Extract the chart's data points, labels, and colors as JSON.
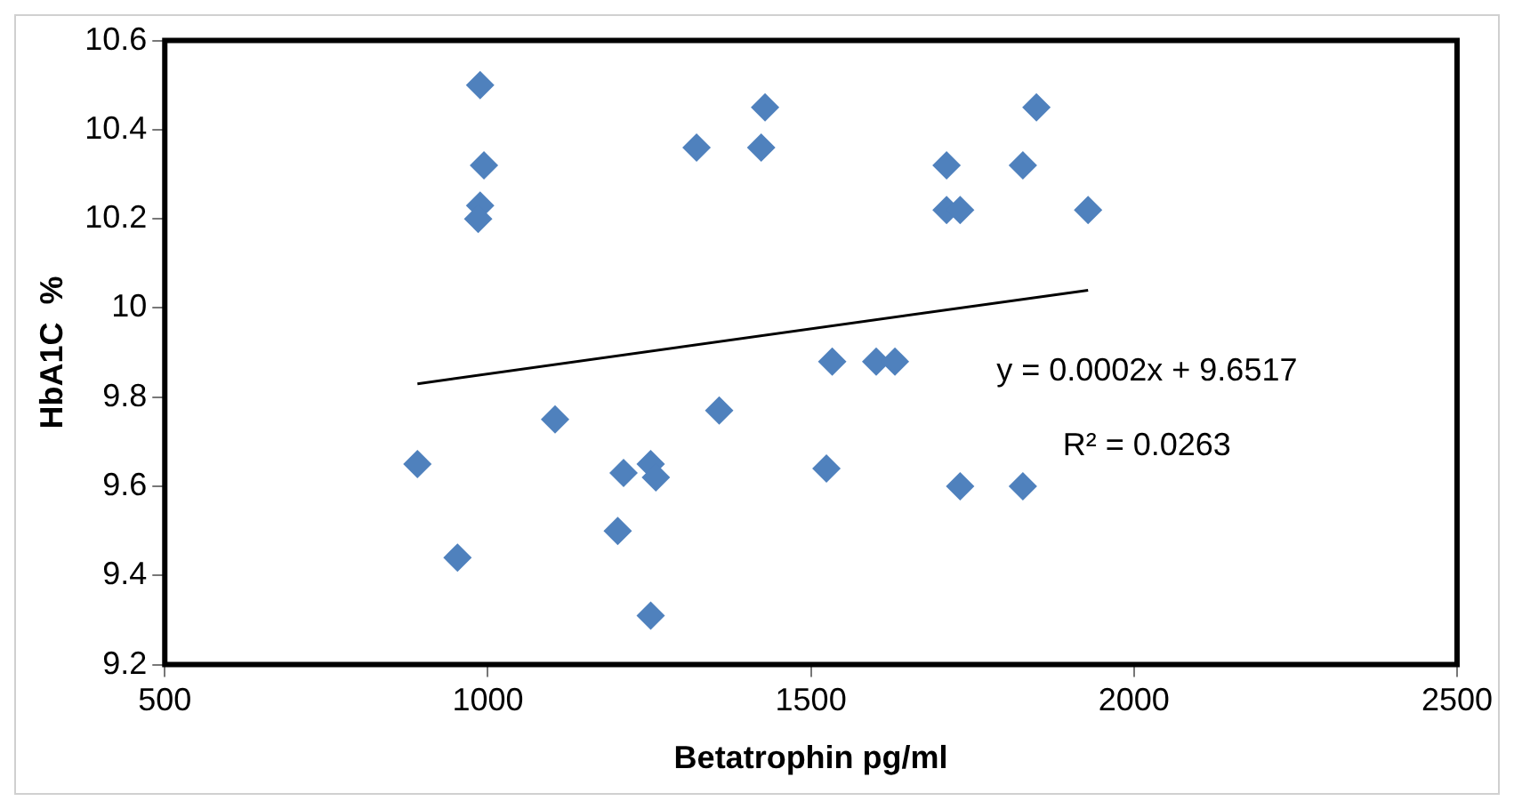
{
  "chart_data": {
    "type": "scatter",
    "xlabel": "Betatrophin pg/ml",
    "ylabel": "HbA1C  %",
    "xlim": [
      500,
      2500
    ],
    "xticks": [
      500,
      1000,
      1500,
      2000,
      2500
    ],
    "ylim": [
      9.2,
      10.6
    ],
    "yticks": [
      {
        "value": 9.2,
        "label": "9.2"
      },
      {
        "value": 9.4,
        "label": "9.4"
      },
      {
        "value": 9.6,
        "label": "9.6"
      },
      {
        "value": 9.8,
        "label": "9.8"
      },
      {
        "value": 10,
        "label": "10"
      },
      {
        "value": 10.2,
        "label": "10.2"
      },
      {
        "value": 10.4,
        "label": "10.4"
      },
      {
        "value": 10.6,
        "label": "10.6"
      }
    ],
    "marker": "diamond",
    "legend": false,
    "annotations": [
      "y = 0.0002x + 9.6517",
      "R² = 0.0263"
    ],
    "series": [
      {
        "type": "scatter",
        "color": "#4f81bd",
        "x": [
          988,
          994,
          988,
          985,
          1323,
          1429,
          1423,
          891,
          953,
          1104,
          1210,
          1252,
          1260,
          1201,
          1252,
          1358,
          1533,
          1601,
          1630,
          1524,
          1710,
          1710,
          1731,
          1828,
          1849,
          1929,
          1731,
          1828
        ],
        "values": [
          10.5,
          10.32,
          10.23,
          10.2,
          10.36,
          10.45,
          10.36,
          9.65,
          9.44,
          9.75,
          9.63,
          9.65,
          9.62,
          9.5,
          9.31,
          9.77,
          9.88,
          9.88,
          9.88,
          9.64,
          10.32,
          10.22,
          10.22,
          10.32,
          10.45,
          10.22,
          9.6,
          9.6
        ]
      },
      {
        "type": "line",
        "color": "#000000",
        "marker": "none",
        "x": [
          891,
          1929
        ],
        "values": [
          9.83,
          10.04
        ]
      }
    ]
  }
}
